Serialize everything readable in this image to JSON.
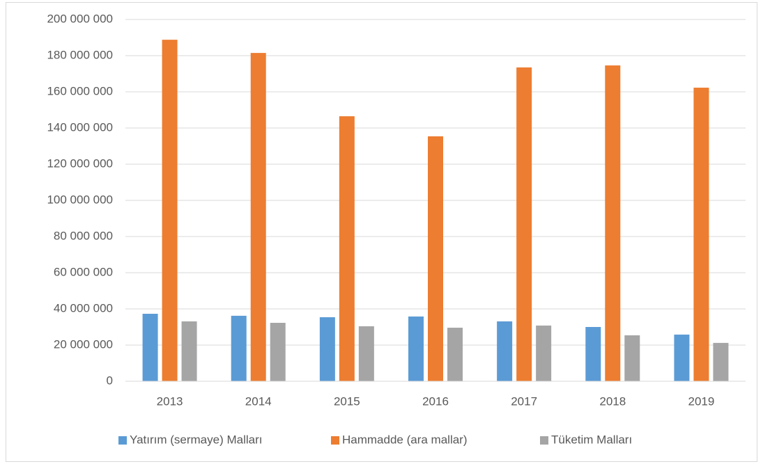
{
  "chart_data": {
    "type": "bar",
    "categories": [
      "2013",
      "2014",
      "2015",
      "2016",
      "2017",
      "2018",
      "2019"
    ],
    "series": [
      {
        "name": "Yatırım (sermaye) Malları",
        "color": "#5b9bd5",
        "values": [
          37300000,
          36200000,
          35400000,
          35800000,
          33100000,
          30000000,
          25800000
        ]
      },
      {
        "name": "Hammadde (ara mallar)",
        "color": "#ed7d31",
        "values": [
          188800000,
          181500000,
          146500000,
          135400000,
          173500000,
          174600000,
          162300000
        ]
      },
      {
        "name": "Tüketim Malları",
        "color": "#a5a5a5",
        "values": [
          33100000,
          32300000,
          30400000,
          29600000,
          30800000,
          25400000,
          21200000
        ]
      }
    ],
    "ylim": [
      0,
      200000000
    ],
    "yticks": [
      0,
      {
        "value": 20000000,
        "label": "20 000 000"
      },
      {
        "value": 40000000,
        "label": "40 000 000"
      },
      {
        "value": 60000000,
        "label": "60 000 000"
      },
      {
        "value": 80000000,
        "label": "80 000 000"
      },
      {
        "value": 100000000,
        "label": "100 000 000"
      },
      {
        "value": 120000000,
        "label": "120 000 000"
      },
      {
        "value": 140000000,
        "label": "140 000 000"
      },
      {
        "value": 160000000,
        "label": "160 000 000"
      },
      {
        "value": 180000000,
        "label": "180 000 000"
      },
      {
        "value": 200000000,
        "label": "200 000 000"
      }
    ],
    "grid": true,
    "legend": "bottom"
  }
}
